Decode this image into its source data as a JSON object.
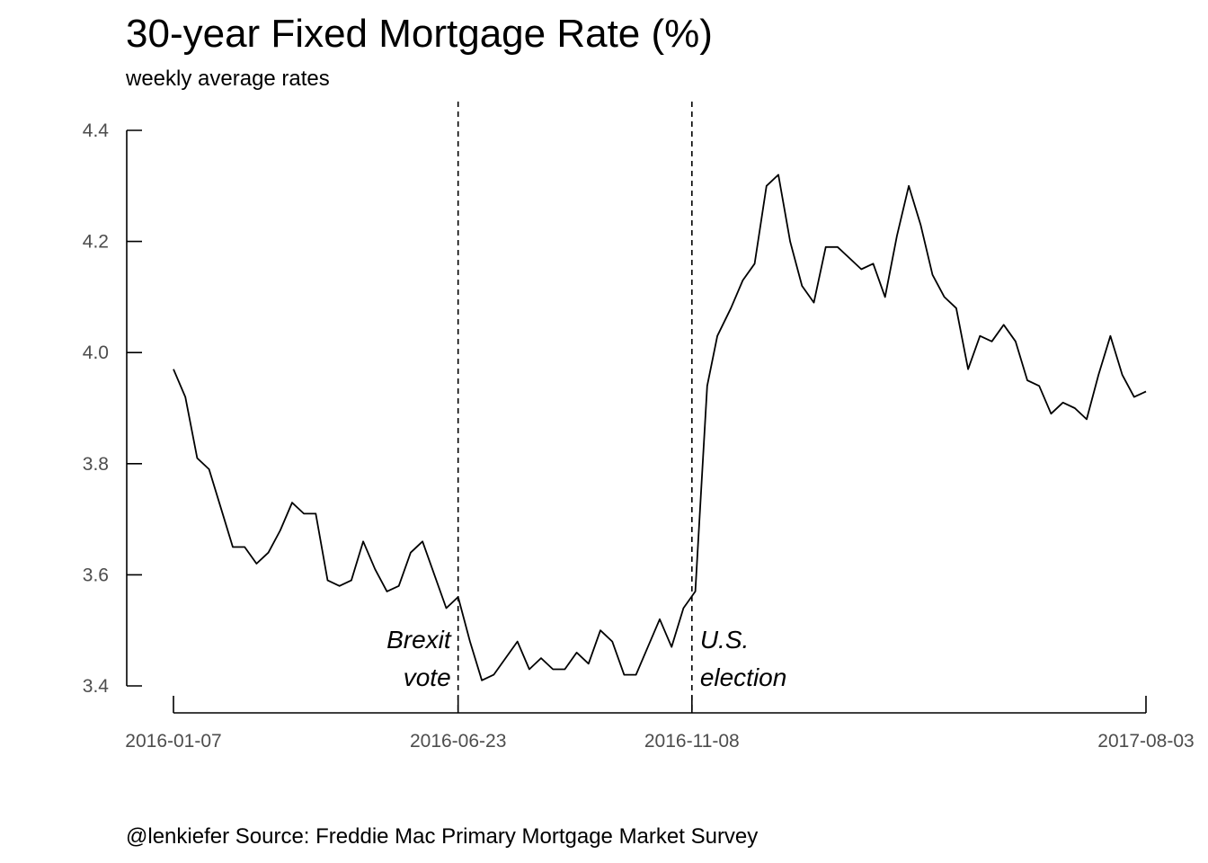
{
  "chart_data": {
    "type": "line",
    "title": "30-year Fixed Mortgage Rate (%)",
    "subtitle": "weekly average rates",
    "caption": "@lenkiefer Source: Freddie Mac Primary Mortgage Market Survey",
    "xlabel": "",
    "ylabel": "",
    "ylim": [
      3.4,
      4.4
    ],
    "y_ticks": [
      {
        "value": 3.4,
        "label": "3.4"
      },
      {
        "value": 3.6,
        "label": "3.6"
      },
      {
        "value": 3.8,
        "label": "3.8"
      },
      {
        "value": 4.0,
        "label": "4.0"
      },
      {
        "value": 4.2,
        "label": "4.2"
      },
      {
        "value": 4.4,
        "label": "4.4"
      }
    ],
    "x_ticks": [
      "2016-01-07",
      "2016-06-23",
      "2016-11-08",
      "2017-08-03"
    ],
    "grid": false,
    "legend": "none",
    "line_color": "#000000",
    "events": [
      {
        "date": "2016-06-23",
        "label_lines": [
          "Brexit",
          "vote"
        ],
        "side": "left"
      },
      {
        "date": "2016-11-08",
        "label_lines": [
          "U.S.",
          "election"
        ],
        "side": "right"
      }
    ],
    "series": [
      {
        "x": [
          "2016-01-07",
          "2016-01-14",
          "2016-01-21",
          "2016-01-28",
          "2016-02-04",
          "2016-02-11",
          "2016-02-18",
          "2016-02-25",
          "2016-03-03",
          "2016-03-10",
          "2016-03-17",
          "2016-03-24",
          "2016-03-31",
          "2016-04-07",
          "2016-04-14",
          "2016-04-21",
          "2016-04-28",
          "2016-05-05",
          "2016-05-12",
          "2016-05-19",
          "2016-05-26",
          "2016-06-02",
          "2016-06-09",
          "2016-06-16",
          "2016-06-23",
          "2016-06-30",
          "2016-07-07",
          "2016-07-14",
          "2016-07-21",
          "2016-07-28",
          "2016-08-04",
          "2016-08-11",
          "2016-08-18",
          "2016-08-25",
          "2016-09-01",
          "2016-09-08",
          "2016-09-15",
          "2016-09-22",
          "2016-09-29",
          "2016-10-06",
          "2016-10-13",
          "2016-10-20",
          "2016-10-27",
          "2016-11-03",
          "2016-11-10",
          "2016-11-17",
          "2016-11-23",
          "2016-12-01",
          "2016-12-08",
          "2016-12-15",
          "2016-12-22",
          "2016-12-29",
          "2017-01-05",
          "2017-01-12",
          "2017-01-19",
          "2017-01-26",
          "2017-02-02",
          "2017-02-09",
          "2017-02-16",
          "2017-02-23",
          "2017-03-02",
          "2017-03-09",
          "2017-03-16",
          "2017-03-23",
          "2017-03-30",
          "2017-04-06",
          "2017-04-13",
          "2017-04-20",
          "2017-04-27",
          "2017-05-04",
          "2017-05-11",
          "2017-05-18",
          "2017-05-25",
          "2017-06-01",
          "2017-06-08",
          "2017-06-15",
          "2017-06-22",
          "2017-06-29",
          "2017-07-06",
          "2017-07-13",
          "2017-07-20",
          "2017-07-27",
          "2017-08-03"
        ],
        "y": [
          3.97,
          3.92,
          3.81,
          3.79,
          3.72,
          3.65,
          3.65,
          3.62,
          3.64,
          3.68,
          3.73,
          3.71,
          3.71,
          3.59,
          3.58,
          3.59,
          3.66,
          3.61,
          3.57,
          3.58,
          3.64,
          3.66,
          3.6,
          3.54,
          3.56,
          3.48,
          3.41,
          3.42,
          3.45,
          3.48,
          3.43,
          3.45,
          3.43,
          3.43,
          3.46,
          3.44,
          3.5,
          3.48,
          3.42,
          3.42,
          3.47,
          3.52,
          3.47,
          3.54,
          3.57,
          3.94,
          4.03,
          4.08,
          4.13,
          4.16,
          4.3,
          4.32,
          4.2,
          4.12,
          4.09,
          4.19,
          4.19,
          4.17,
          4.15,
          4.16,
          4.1,
          4.21,
          4.3,
          4.23,
          4.14,
          4.1,
          4.08,
          3.97,
          4.03,
          4.02,
          4.05,
          4.02,
          3.95,
          3.94,
          3.89,
          3.91,
          3.9,
          3.88,
          3.96,
          4.03,
          3.96,
          3.92,
          3.93
        ]
      }
    ]
  }
}
